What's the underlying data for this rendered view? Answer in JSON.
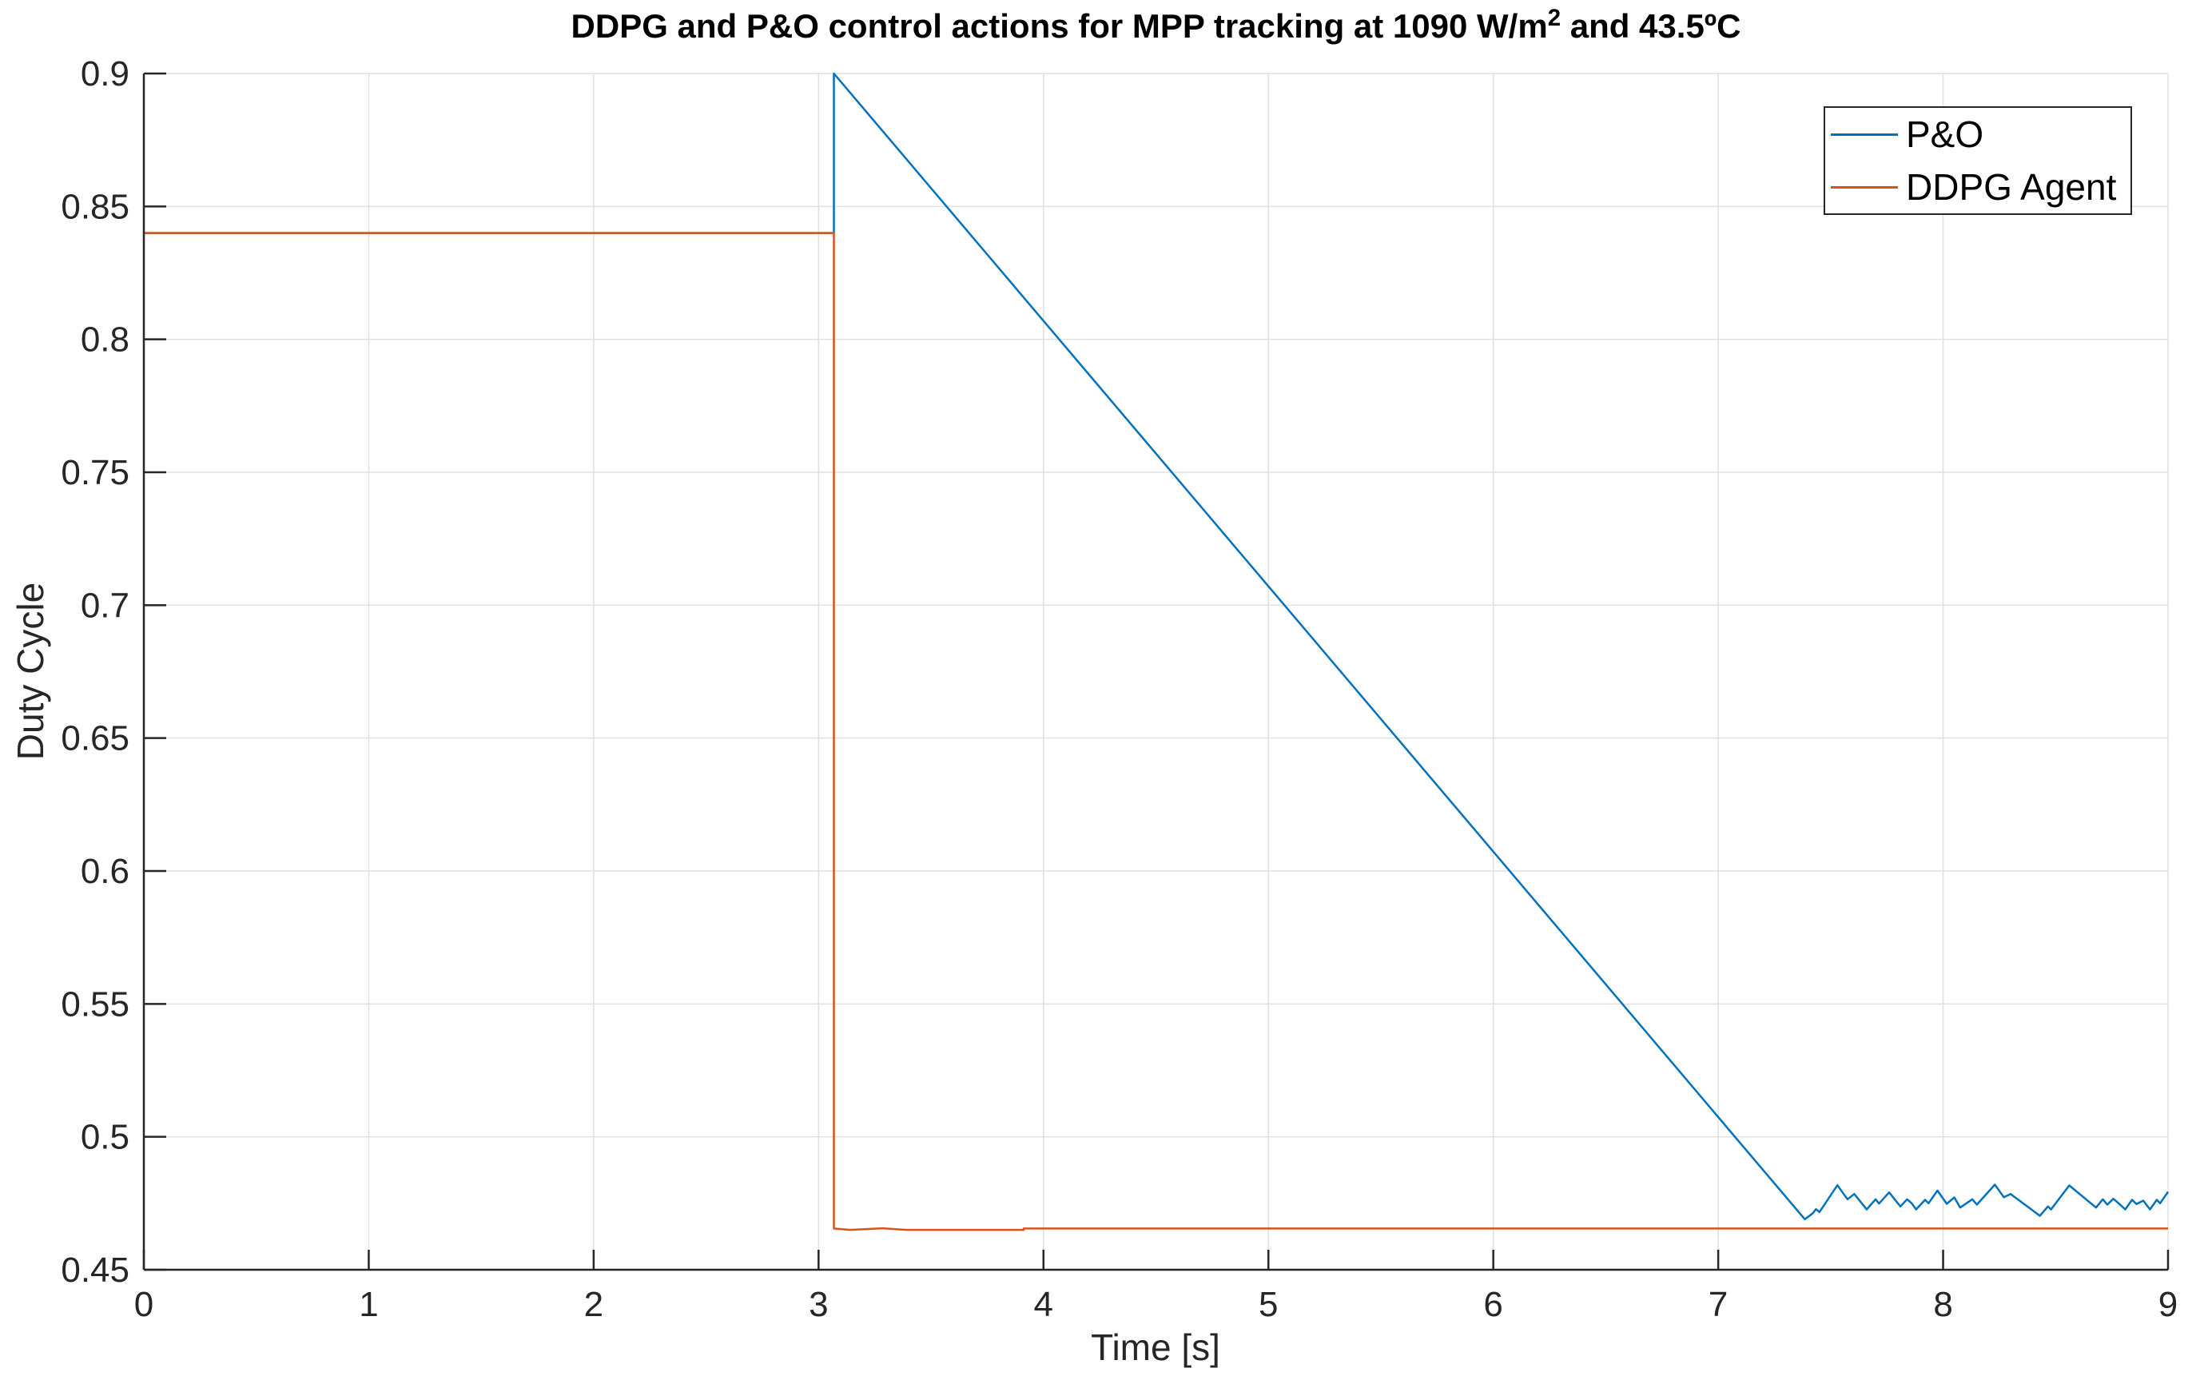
{
  "figure": {
    "title_before_sup": "DDPG and P&O control actions for MPP tracking at 1090 W/m",
    "title_sup": "2",
    "title_after_sup": " and 43.5ºC",
    "xlabel": "Time [s]",
    "ylabel": "Duty Cycle"
  },
  "legend": {
    "position": "northeast",
    "entries": [
      {
        "label": "P&O",
        "color": "#0072BD"
      },
      {
        "label": "DDPG Agent",
        "color": "#D95319"
      }
    ]
  },
  "colors": {
    "axis": "#262626",
    "grid": "#E0E0E0",
    "background": "#FFFFFF",
    "pando_line": "#0072BD",
    "ddpg_line": "#D95319"
  },
  "chart_data": {
    "type": "line",
    "title": "DDPG and P&O control actions for MPP tracking at 1090 W/m^2 and 43.5ºC",
    "xlabel": "Time [s]",
    "ylabel": "Duty Cycle",
    "xlim": [
      0,
      9
    ],
    "ylim": [
      0.45,
      0.9
    ],
    "xticks": [
      0,
      1,
      2,
      3,
      4,
      5,
      6,
      7,
      8,
      9
    ],
    "xtick_labels": [
      "0",
      "1",
      "2",
      "3",
      "4",
      "5",
      "6",
      "7",
      "8",
      "9"
    ],
    "yticks": [
      0.45,
      0.5,
      0.55,
      0.6,
      0.65,
      0.7,
      0.75,
      0.8,
      0.85,
      0.9
    ],
    "ytick_labels": [
      "0.45",
      "0.5",
      "0.55",
      "0.6",
      "0.65",
      "0.7",
      "0.75",
      "0.8",
      "0.85",
      "0.9"
    ],
    "grid": true,
    "legend_position": "northeast",
    "series": [
      {
        "name": "P&O",
        "color": "#0072BD",
        "points": [
          [
            0,
            0.84
          ],
          [
            3.068,
            0.84
          ],
          [
            3.068,
            0.9
          ],
          [
            7.385,
            0.469
          ],
          [
            7.42,
            0.4712
          ],
          [
            7.435,
            0.4728
          ],
          [
            7.45,
            0.4717
          ],
          [
            7.53,
            0.4818
          ],
          [
            7.575,
            0.4765
          ],
          [
            7.605,
            0.4785
          ],
          [
            7.66,
            0.4727
          ],
          [
            7.7,
            0.4765
          ],
          [
            7.715,
            0.4749
          ],
          [
            7.76,
            0.4791
          ],
          [
            7.81,
            0.4738
          ],
          [
            7.84,
            0.4765
          ],
          [
            7.86,
            0.475
          ],
          [
            7.88,
            0.4727
          ],
          [
            7.92,
            0.4763
          ],
          [
            7.935,
            0.475
          ],
          [
            7.975,
            0.4798
          ],
          [
            8.016,
            0.4748
          ],
          [
            8.05,
            0.4772
          ],
          [
            8.076,
            0.4734
          ],
          [
            8.13,
            0.4765
          ],
          [
            8.15,
            0.4745
          ],
          [
            8.23,
            0.482
          ],
          [
            8.27,
            0.4773
          ],
          [
            8.3,
            0.4785
          ],
          [
            8.43,
            0.4703
          ],
          [
            8.466,
            0.4738
          ],
          [
            8.48,
            0.4727
          ],
          [
            8.561,
            0.4817
          ],
          [
            8.68,
            0.4734
          ],
          [
            8.71,
            0.4765
          ],
          [
            8.73,
            0.4745
          ],
          [
            8.757,
            0.4767
          ],
          [
            8.78,
            0.475
          ],
          [
            8.81,
            0.4727
          ],
          [
            8.84,
            0.4763
          ],
          [
            8.86,
            0.4747
          ],
          [
            8.89,
            0.476
          ],
          [
            8.92,
            0.4727
          ],
          [
            8.95,
            0.4763
          ],
          [
            8.965,
            0.475
          ],
          [
            9.0,
            0.4793
          ]
        ]
      },
      {
        "name": "DDPG Agent",
        "color": "#D95319",
        "points": [
          [
            0,
            0.84
          ],
          [
            3.068,
            0.84
          ],
          [
            3.068,
            0.4655
          ],
          [
            3.14,
            0.465
          ],
          [
            3.285,
            0.4656
          ],
          [
            3.39,
            0.465
          ],
          [
            3.912,
            0.465
          ],
          [
            3.912,
            0.4655
          ],
          [
            9.0,
            0.4655
          ]
        ]
      }
    ]
  }
}
